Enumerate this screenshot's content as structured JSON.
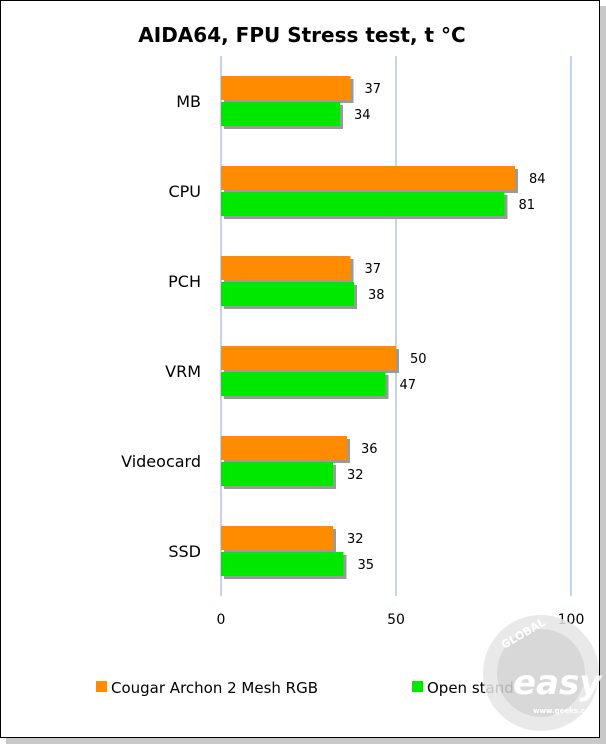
{
  "chart_data": {
    "type": "bar",
    "orientation": "horizontal",
    "title": "AIDA64, FPU Stress test, t °C",
    "categories": [
      "MB",
      "CPU",
      "PCH",
      "VRM",
      "Videocard",
      "SSD"
    ],
    "series": [
      {
        "name": "Cougar Archon 2 Mesh RGB",
        "color": "#ff8c00",
        "values": [
          37,
          84,
          37,
          50,
          36,
          32
        ]
      },
      {
        "name": "Open stand",
        "color": "#00e800",
        "values": [
          34,
          81,
          38,
          47,
          32,
          35
        ]
      }
    ],
    "xlim": [
      0,
      100
    ],
    "xticks": [
      0,
      50,
      100
    ],
    "grid": true,
    "legend_position": "bottom"
  },
  "watermark": {
    "global": "GLOBAL",
    "easy": "easy",
    "url": "www.geeks.com"
  }
}
